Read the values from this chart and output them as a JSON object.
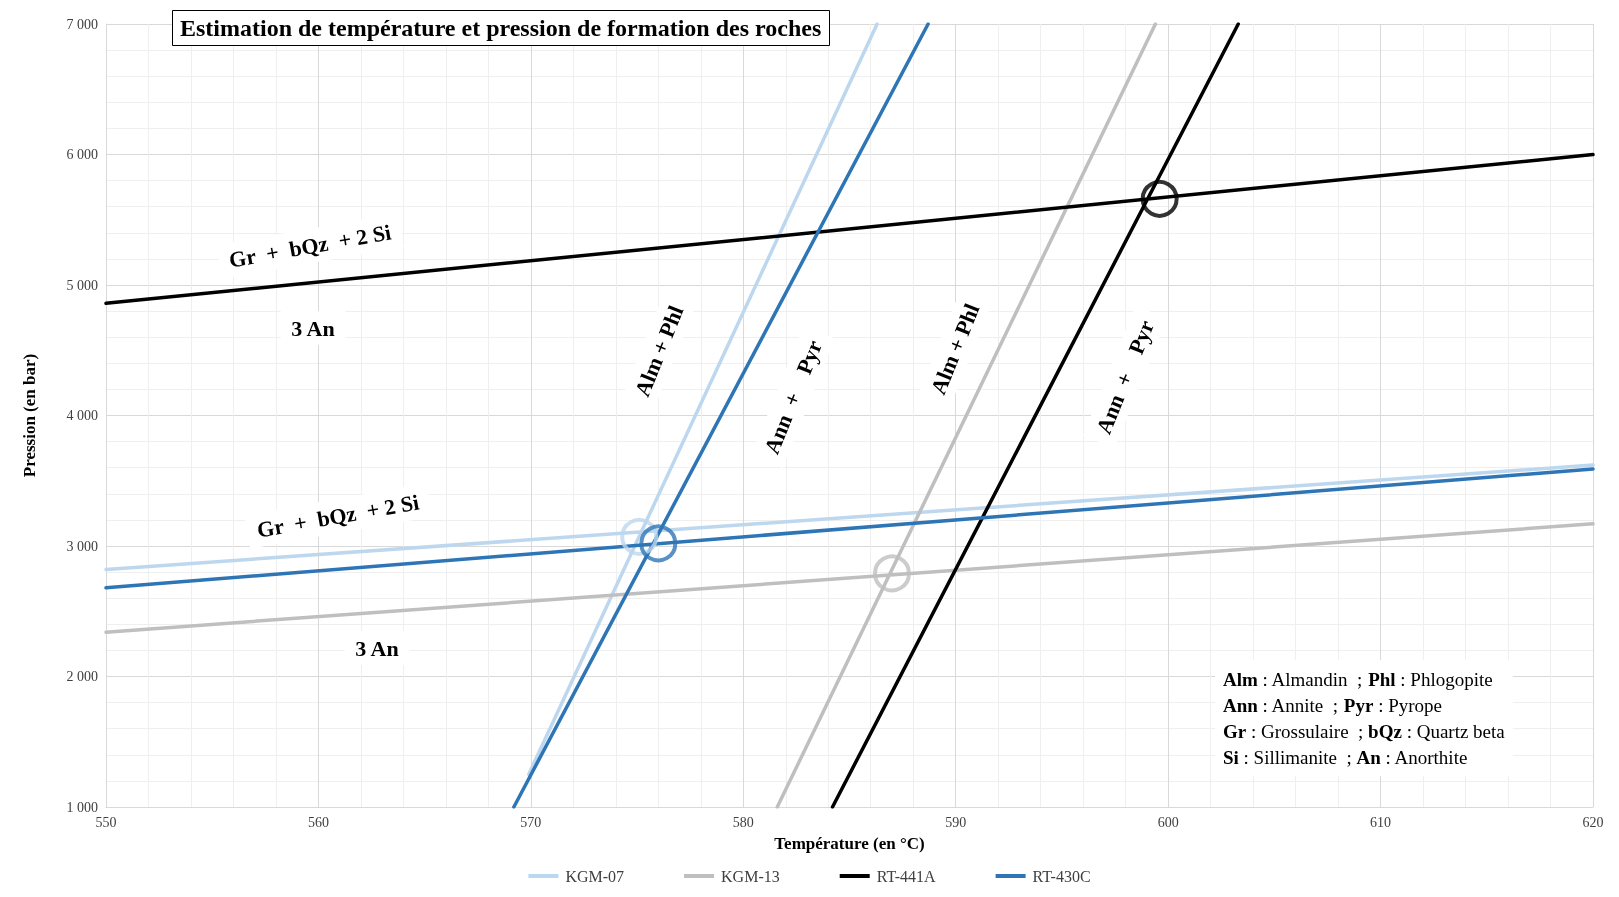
{
  "chart_data": {
    "type": "line",
    "title": "Estimation de température et pression de formation des roches",
    "xlabel": "Température (en °C)",
    "ylabel": "Pression (en bar)",
    "xlim": [
      550,
      620
    ],
    "xticks": [
      550,
      560,
      570,
      580,
      590,
      600,
      610,
      620
    ],
    "ylim": [
      1000,
      7000
    ],
    "yticks": [
      {
        "value": 1000,
        "label": "1 000"
      },
      {
        "value": 2000,
        "label": "2 000"
      },
      {
        "value": 3000,
        "label": "3 000"
      },
      {
        "value": 4000,
        "label": "4 000"
      },
      {
        "value": 5000,
        "label": "5 000"
      },
      {
        "value": 6000,
        "label": "6 000"
      },
      {
        "value": 7000,
        "label": "7 000"
      }
    ],
    "grid": true,
    "legend": "bottom",
    "marker": "none",
    "line_style": "solid",
    "series": [
      {
        "name": "KGM-07",
        "color": "#bdd7ee",
        "x": [
          550,
          620,
          580,
          569.9,
          586.3
        ],
        "values": [
          2820,
          3620,
          null,
          1250,
          7000
        ]
      },
      {
        "name": "KGM-13",
        "color": "#bfbfbf",
        "x": [
          550,
          620,
          590,
          581.6,
          599.4
        ],
        "values": [
          2340,
          3170,
          null,
          1000,
          7000
        ]
      },
      {
        "name": "RT-441A",
        "color": "#000000",
        "x": [
          550,
          620,
          590,
          584.2,
          603.3
        ],
        "values": [
          4860,
          6000,
          null,
          1000,
          7000
        ]
      },
      {
        "name": "RT-430C",
        "color": "#2e75b6",
        "x": [
          550,
          620,
          580,
          569.2,
          588.7
        ],
        "values": [
          2680,
          3590,
          null,
          1000,
          7000
        ]
      },
      {
        "type": "scatter",
        "marker": "circle",
        "color": "#bdd7ee",
        "x": [
          575.1
        ],
        "values": [
          3070
        ]
      },
      {
        "type": "scatter",
        "marker": "circle",
        "color": "#bfbfbf",
        "x": [
          587.0
        ],
        "values": [
          2790
        ]
      },
      {
        "type": "scatter",
        "marker": "circle",
        "color": "#000000",
        "x": [
          599.6
        ],
        "values": [
          5660
        ]
      },
      {
        "type": "scatter",
        "marker": "circle",
        "color": "#2e75b6",
        "x": [
          576.0
        ],
        "values": [
          3020
        ]
      }
    ],
    "annotations": [
      "Gr  +  bQz  + 2 Si",
      "3 An",
      "Gr  +  bQz  + 2 Si",
      "3 An",
      "Alm + Phl",
      "Ann  +    Pyr",
      "Alm + Phl",
      "Ann  +    Pyr",
      "Alm : Almandin  ; Phl : Phlogopite",
      "Ann : Annite  ; Pyr : Pyrope",
      "Gr : Grossulaire  ; bQz : Quartz beta",
      "Si : Sillimanite  ; An : Anorthite"
    ]
  }
}
